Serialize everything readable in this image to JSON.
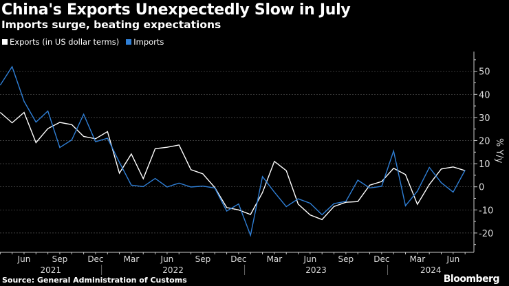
{
  "chart_data": {
    "type": "line",
    "title": "China's Exports Unexpectedly Slow in July",
    "subtitle": "Imports surge, beating expectations",
    "ylabel": "% Y/y",
    "ylim": [
      -28,
      58
    ],
    "yticks": [
      -20,
      -10,
      0,
      10,
      20,
      30,
      40,
      50
    ],
    "grid": true,
    "legend_position": "top-left",
    "x_start": "2021-04",
    "x": [
      "2021-04",
      "2021-05",
      "2021-06",
      "2021-07",
      "2021-08",
      "2021-09",
      "2021-10",
      "2021-11",
      "2021-12",
      "2022-01",
      "2022-02",
      "2022-03",
      "2022-04",
      "2022-05",
      "2022-06",
      "2022-07",
      "2022-08",
      "2022-09",
      "2022-10",
      "2022-11",
      "2022-12",
      "2023-01",
      "2023-02",
      "2023-03",
      "2023-04",
      "2023-05",
      "2023-06",
      "2023-07",
      "2023-08",
      "2023-09",
      "2023-10",
      "2023-11",
      "2023-12",
      "2024-01",
      "2024-02",
      "2024-03",
      "2024-04",
      "2024-05",
      "2024-06",
      "2024-07"
    ],
    "x_tick_labels": [
      {
        "month": "2021-06",
        "label": "Jun"
      },
      {
        "month": "2021-09",
        "label": "Sep"
      },
      {
        "month": "2021-12",
        "label": "Dec"
      },
      {
        "month": "2022-03",
        "label": "Mar"
      },
      {
        "month": "2022-06",
        "label": "Jun"
      },
      {
        "month": "2022-09",
        "label": "Sep"
      },
      {
        "month": "2022-12",
        "label": "Dec"
      },
      {
        "month": "2023-03",
        "label": "Mar"
      },
      {
        "month": "2023-06",
        "label": "Jun"
      },
      {
        "month": "2023-09",
        "label": "Sep"
      },
      {
        "month": "2023-12",
        "label": "Dec"
      },
      {
        "month": "2024-03",
        "label": "Mar"
      },
      {
        "month": "2024-06",
        "label": "Jun"
      }
    ],
    "year_labels": [
      "2021",
      "2022",
      "2023",
      "2024"
    ],
    "series": [
      {
        "name": "Exports (in US dollar terms)",
        "color": "#ffffff",
        "values": [
          32.2,
          27.7,
          32.2,
          19.1,
          25.2,
          27.9,
          26.9,
          21.8,
          20.8,
          23.9,
          5.9,
          14.2,
          3.5,
          16.5,
          17.1,
          18.1,
          7.4,
          5.6,
          -0.3,
          -9.0,
          -10.0,
          -12.0,
          -2.5,
          11.0,
          7.0,
          -7.5,
          -12.2,
          -14.2,
          -8.5,
          -6.7,
          -6.4,
          0.7,
          2.3,
          8.0,
          5.3,
          -7.6,
          1.0,
          7.7,
          8.6,
          7.0
        ]
      },
      {
        "name": "Imports",
        "color": "#2f7fd6",
        "values": [
          44.0,
          52.0,
          37.0,
          28.0,
          32.8,
          17.0,
          20.3,
          31.4,
          19.5,
          21.0,
          10.6,
          0.7,
          0.1,
          3.6,
          -0.1,
          1.6,
          -0.1,
          0.3,
          -0.5,
          -10.5,
          -7.4,
          -21.0,
          4.4,
          -2.3,
          -8.6,
          -5.2,
          -7.1,
          -12.1,
          -7.3,
          -6.3,
          2.9,
          -0.5,
          0.2,
          15.5,
          -8.2,
          -1.9,
          8.4,
          1.8,
          -2.3,
          7.2
        ]
      }
    ]
  },
  "source": "Source: General Administration of Customs",
  "brand": "Bloomberg"
}
